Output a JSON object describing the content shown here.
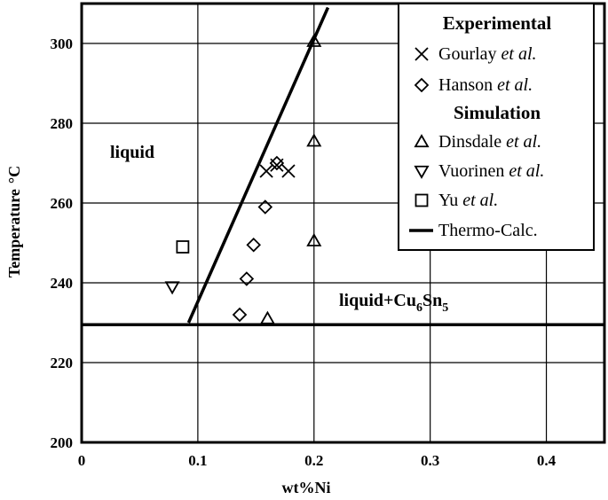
{
  "chart_data": {
    "type": "scatter",
    "xlabel": "wt%Ni",
    "ylabel": "Temperature",
    "ylabel_unit": "°C",
    "xlim": [
      0,
      0.45
    ],
    "ylim": [
      200,
      310
    ],
    "x_ticks": [
      0,
      0.1,
      0.2,
      0.3,
      0.4
    ],
    "x_tick_labels": [
      "0",
      "0.1",
      "0.2",
      "0.3",
      "0.4"
    ],
    "y_ticks": [
      200,
      220,
      240,
      260,
      280,
      300
    ],
    "y_tick_labels": [
      "200",
      "220",
      "240",
      "260",
      "280",
      "300"
    ],
    "grid": true,
    "legend_position": "top-right",
    "regions": {
      "liquid": "liquid",
      "liquid_cu6sn5": {
        "main": "liquid+Cu",
        "sub1": "6",
        "mid": "Sn",
        "sub2": "5"
      }
    },
    "legend": {
      "experimental_heading": "Experimental",
      "simulation_heading": "Simulation",
      "etal": "et al."
    },
    "series": [
      {
        "name": "Gourlay",
        "group": "experimental",
        "marker": "x",
        "points": [
          [
            0.159,
            268
          ],
          [
            0.168,
            269.5
          ],
          [
            0.178,
            268
          ]
        ]
      },
      {
        "name": "Hanson",
        "group": "experimental",
        "marker": "diamond",
        "points": [
          [
            0.136,
            232
          ],
          [
            0.142,
            241
          ],
          [
            0.148,
            249.5
          ],
          [
            0.158,
            259
          ],
          [
            0.168,
            270
          ]
        ]
      },
      {
        "name": "Dinsdale",
        "group": "simulation",
        "marker": "triangle-up",
        "points": [
          [
            0.16,
            231
          ],
          [
            0.2,
            250.5
          ],
          [
            0.2,
            275.5
          ],
          [
            0.2,
            300.5
          ]
        ]
      },
      {
        "name": "Vuorinen",
        "group": "simulation",
        "marker": "triangle-down",
        "points": [
          [
            0.078,
            239
          ]
        ]
      },
      {
        "name": "Yu",
        "group": "simulation",
        "marker": "square",
        "points": [
          [
            0.087,
            249
          ]
        ]
      },
      {
        "name": "Thermo-Calc.",
        "group": "simulation",
        "marker": "line",
        "lines": [
          [
            [
              0.092,
              230
            ],
            [
              0.212,
              309
            ]
          ],
          [
            [
              0,
              229.5
            ],
            [
              0.45,
              229.5
            ]
          ]
        ]
      }
    ]
  }
}
